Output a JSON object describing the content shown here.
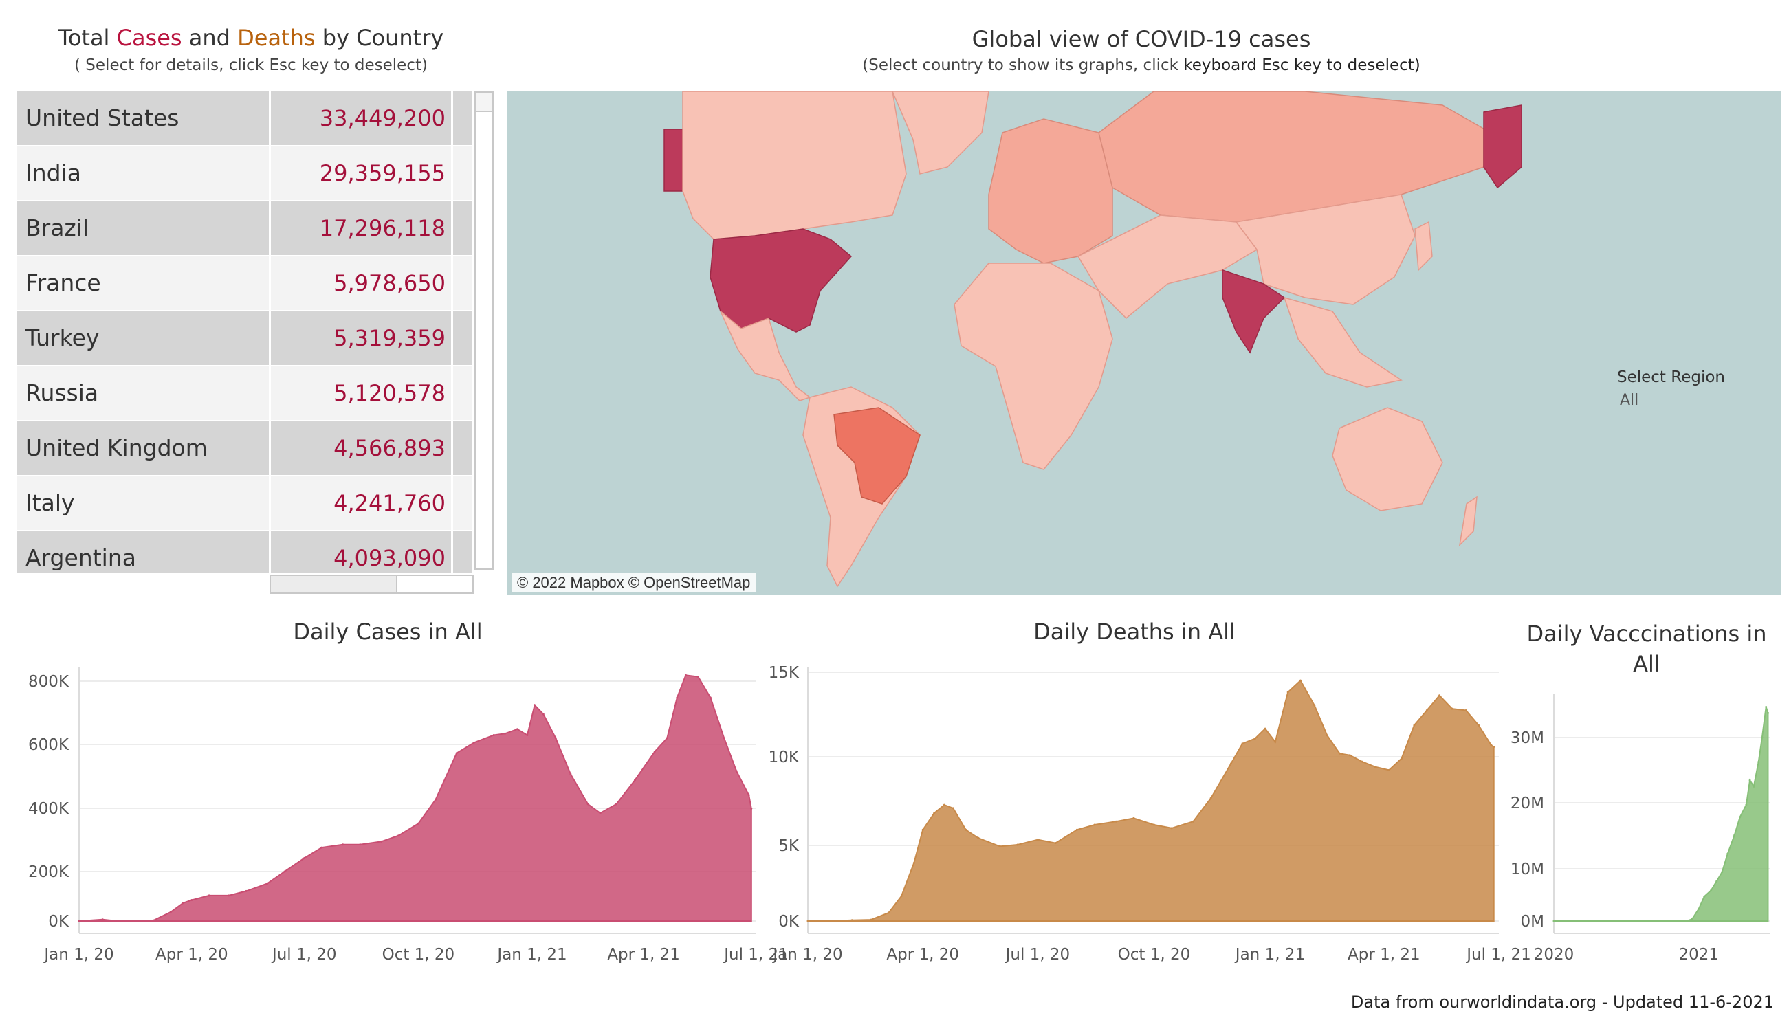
{
  "table_panel": {
    "title_part1": "Total ",
    "title_cases": "Cases",
    "title_and": " and ",
    "title_deaths": "Deaths",
    "title_part2": " by Country",
    "subtitle": "( Select for details, click Esc key to deselect)",
    "rows": [
      {
        "country": "United States",
        "cases": "33,449,200"
      },
      {
        "country": "India",
        "cases": "29,359,155"
      },
      {
        "country": "Brazil",
        "cases": "17,296,118"
      },
      {
        "country": "France",
        "cases": "5,978,650"
      },
      {
        "country": "Turkey",
        "cases": "5,319,359"
      },
      {
        "country": "Russia",
        "cases": "5,120,578"
      },
      {
        "country": "United Kingdom",
        "cases": "4,566,893"
      },
      {
        "country": "Italy",
        "cases": "4,241,760"
      },
      {
        "country": "Argentina",
        "cases": "4,093,090"
      }
    ]
  },
  "map_panel": {
    "title": "Global view of COVID-19 cases",
    "subtitle_part1": "(Select country to show its graphs, click ",
    "subtitle_part2": "keyboard Esc key to deselect)",
    "attribution": "© 2022 Mapbox © OpenStreetMap",
    "region_label": "Select Region",
    "region_value": "All",
    "colors": {
      "ocean": "#bdd3d3",
      "land_low": "#f8c2b5",
      "land_mid": "#f4a898",
      "land_high": "#ed7462",
      "land_top": "#bc3a5b"
    }
  },
  "chart_data": [
    {
      "type": "area",
      "title": "Daily Cases in All",
      "color": "#c94e72",
      "x": [
        "2020-01-01",
        "2020-01-20",
        "2020-02-01",
        "2020-02-10",
        "2020-03-01",
        "2020-03-15",
        "2020-03-25",
        "2020-04-01",
        "2020-04-15",
        "2020-05-01",
        "2020-05-15",
        "2020-06-01",
        "2020-06-15",
        "2020-07-01",
        "2020-07-15",
        "2020-08-01",
        "2020-08-15",
        "2020-09-01",
        "2020-09-15",
        "2020-10-01",
        "2020-10-15",
        "2020-11-01",
        "2020-11-15",
        "2020-12-01",
        "2020-12-10",
        "2020-12-20",
        "2020-12-28",
        "2021-01-03",
        "2021-01-10",
        "2021-01-20",
        "2021-02-01",
        "2021-02-15",
        "2021-02-25",
        "2021-03-10",
        "2021-03-25",
        "2021-04-10",
        "2021-04-20",
        "2021-04-28",
        "2021-05-05",
        "2021-05-15",
        "2021-05-25",
        "2021-06-05",
        "2021-06-15",
        "2021-06-25",
        "2021-06-27"
      ],
      "values": [
        0,
        5000,
        0,
        0,
        2000,
        30000,
        60000,
        70000,
        85000,
        85000,
        100000,
        125000,
        165000,
        210000,
        245000,
        255000,
        255000,
        265000,
        285000,
        325000,
        405000,
        560000,
        595000,
        620000,
        625000,
        640000,
        620000,
        720000,
        690000,
        610000,
        490000,
        390000,
        360000,
        390000,
        470000,
        565000,
        610000,
        745000,
        820000,
        815000,
        745000,
        610000,
        500000,
        420000,
        375000
      ],
      "yticks": [
        "0K",
        "200K",
        "400K",
        "600K",
        "800K"
      ],
      "ylim": [
        0,
        850000
      ],
      "xticks": [
        "Jan 1, 20",
        "Apr 1, 20",
        "Jul 1, 20",
        "Oct 1, 20",
        "Jan 1, 21",
        "Apr 1, 21",
        "Jul 1, 21"
      ]
    },
    {
      "type": "area",
      "title": "Daily Deaths in All",
      "color": "#c88a4a",
      "x": [
        "2020-01-01",
        "2020-01-25",
        "2020-02-05",
        "2020-02-20",
        "2020-03-05",
        "2020-03-15",
        "2020-03-25",
        "2020-04-01",
        "2020-04-10",
        "2020-04-18",
        "2020-04-25",
        "2020-05-05",
        "2020-05-15",
        "2020-06-01",
        "2020-06-15",
        "2020-07-01",
        "2020-07-15",
        "2020-08-01",
        "2020-08-15",
        "2020-09-01",
        "2020-09-15",
        "2020-10-01",
        "2020-10-15",
        "2020-11-01",
        "2020-11-15",
        "2020-12-01",
        "2020-12-10",
        "2020-12-20",
        "2020-12-28",
        "2021-01-05",
        "2021-01-15",
        "2021-01-25",
        "2021-02-05",
        "2021-02-15",
        "2021-02-25",
        "2021-03-05",
        "2021-03-15",
        "2021-03-25",
        "2021-04-05",
        "2021-04-15",
        "2021-04-25",
        "2021-05-05",
        "2021-05-15",
        "2021-05-25",
        "2021-06-05",
        "2021-06-15",
        "2021-06-25",
        "2021-06-27"
      ],
      "values": [
        0,
        20,
        50,
        80,
        500,
        1500,
        3500,
        5500,
        6500,
        7000,
        6800,
        5500,
        5000,
        4500,
        4600,
        4900,
        4700,
        5500,
        5800,
        6000,
        6200,
        5800,
        5600,
        6000,
        7400,
        9500,
        10700,
        11000,
        11600,
        10800,
        13800,
        14500,
        13000,
        11200,
        10100,
        10000,
        9600,
        9300,
        9100,
        9800,
        11800,
        12700,
        13600,
        12800,
        12700,
        11800,
        10600,
        10500
      ],
      "yticks": [
        "0K",
        "5K",
        "10K",
        "15K"
      ],
      "ylim": [
        0,
        15000
      ],
      "xticks": [
        "Jan 1, 20",
        "Apr 1, 20",
        "Jul 1, 20",
        "Oct 1, 20",
        "Jan 1, 21",
        "Apr 1, 21",
        "Jul 1, 21"
      ]
    },
    {
      "type": "area",
      "title": "Daily Vacccinations  in All",
      "color": "#86bf77",
      "x": [
        "2020-01-01",
        "2020-12-01",
        "2020-12-15",
        "2021-01-01",
        "2021-01-15",
        "2021-02-01",
        "2021-02-15",
        "2021-03-01",
        "2021-03-15",
        "2021-04-01",
        "2021-04-15",
        "2021-05-01",
        "2021-05-10",
        "2021-05-20",
        "2021-06-01",
        "2021-06-10",
        "2021-06-20",
        "2021-06-25"
      ],
      "values": [
        0,
        0,
        300000,
        2000000,
        4000000,
        5000000,
        6500000,
        8000000,
        11000000,
        14000000,
        17000000,
        19000000,
        23000000,
        22000000,
        26000000,
        30000000,
        35000000,
        34000000
      ],
      "yticks": [
        "0M",
        "10M",
        "20M",
        "30M"
      ],
      "ylim": [
        0,
        36000000
      ],
      "xticks": [
        "2020",
        "2021"
      ]
    }
  ],
  "footer": "Data from ourworldindata.org - Updated 11-6-2021"
}
